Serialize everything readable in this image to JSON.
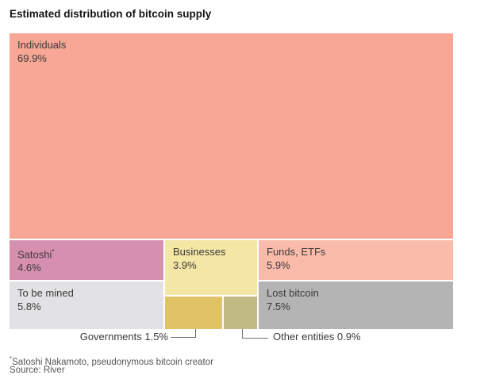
{
  "header": {
    "title": "Estimated distribution of bitcoin supply"
  },
  "chart_data": {
    "type": "treemap",
    "title": "Estimated distribution of bitcoin supply",
    "value_unit": "percent of total bitcoin supply",
    "layout_hints": {
      "gutter": "2px white gaps between blocks",
      "labels": "category name and percent at top-left inside block; small blocks labeled via callouts below chart"
    },
    "blocks": [
      {
        "key": "individuals",
        "label": "Individuals",
        "value": 69.9,
        "display": "69.9%",
        "color": "#f8a695"
      },
      {
        "key": "satoshi",
        "label": "Satoshi",
        "footnote_marker": "*",
        "value": 4.6,
        "display": "4.6%",
        "color": "#d78fb0"
      },
      {
        "key": "to-be-mined",
        "label": "To be mined",
        "value": 5.8,
        "display": "5.8%",
        "color": "#e2e2e4"
      },
      {
        "key": "businesses",
        "label": "Businesses",
        "value": 3.9,
        "display": "3.9%",
        "color": "#f4e6a4"
      },
      {
        "key": "governments",
        "label": "Governments",
        "value": 1.5,
        "display": "1.5%",
        "color": "#e0c366",
        "label_position": "outside"
      },
      {
        "key": "other-entities",
        "label": "Other entities",
        "value": 0.9,
        "display": "0.9%",
        "color": "#c1bb83",
        "label_position": "outside"
      },
      {
        "key": "funds-etfs",
        "label": "Funds, ETFs",
        "value": 5.9,
        "display": "5.9%",
        "color": "#fabbab"
      },
      {
        "key": "lost-bitcoin",
        "label": "Lost bitcoin",
        "value": 7.5,
        "display": "7.5%",
        "color": "#b5b4b4"
      }
    ],
    "callouts": [
      {
        "key": "governments",
        "text": "Governments 1.5%"
      },
      {
        "key": "other-entities",
        "text": "Other entities 0.9%"
      }
    ]
  },
  "footer": {
    "footnote_marker": "*",
    "footnote": "Satoshi Nakamoto, pseudonymous bitcoin creator",
    "source": "Source: River"
  }
}
